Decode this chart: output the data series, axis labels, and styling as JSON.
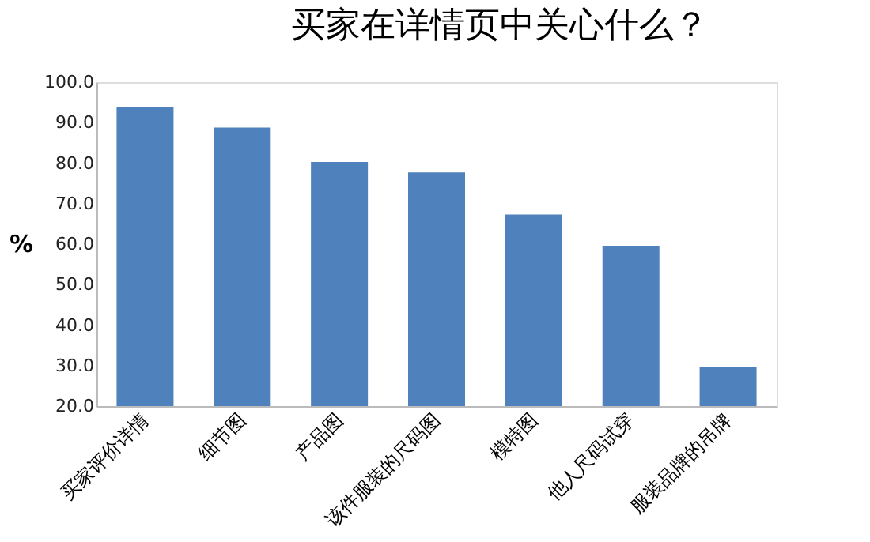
{
  "chart_data": {
    "type": "bar",
    "title": "买家在详情页中关心什么？",
    "ylabel": "%",
    "categories": [
      "买家评价详情",
      "细节图",
      "产品图",
      "该件服装的尺码图",
      "模特图",
      "他人尺码试穿",
      "服装品牌的吊牌"
    ],
    "values": [
      93.9,
      88.8,
      80.3,
      77.7,
      67.3,
      59.6,
      29.7
    ],
    "color": "#4f81bd",
    "ylim": [
      20,
      100
    ],
    "yticks": [
      {
        "value": 20,
        "label": "20.0"
      },
      {
        "value": 30,
        "label": "30.0"
      },
      {
        "value": 40,
        "label": "40.0"
      },
      {
        "value": 50,
        "label": "50.0"
      },
      {
        "value": 60,
        "label": "60.0"
      },
      {
        "value": 70,
        "label": "70.0"
      },
      {
        "value": 80,
        "label": "80.0"
      },
      {
        "value": 90,
        "label": "90.0"
      },
      {
        "value": 100,
        "label": "100.0"
      }
    ],
    "grid": false
  }
}
